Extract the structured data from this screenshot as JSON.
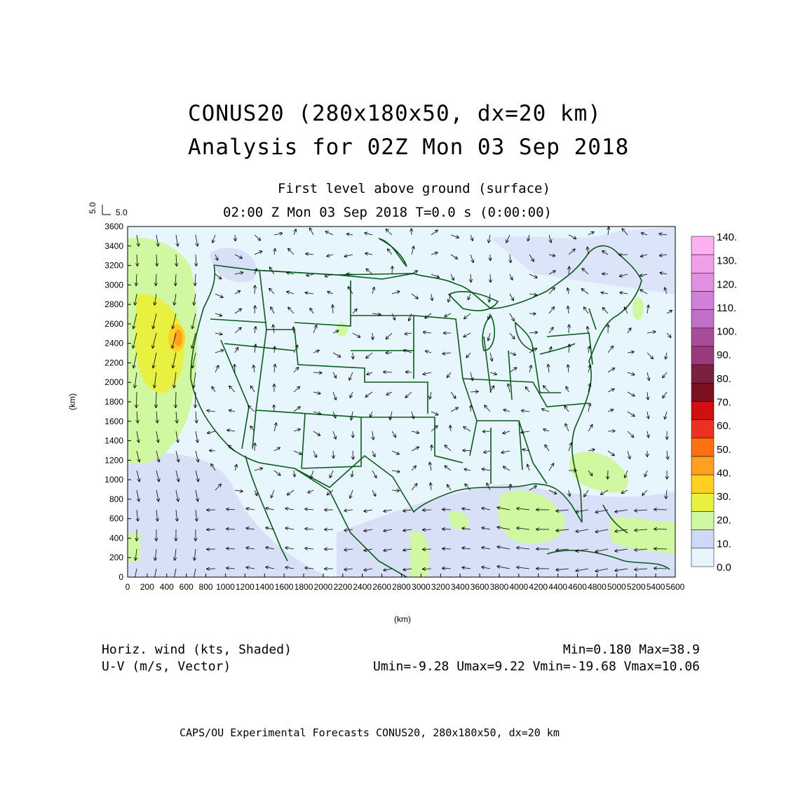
{
  "titles": {
    "line1": "CONUS20 (280x180x50, dx=20 km)",
    "line2": "Analysis for 02Z Mon 03 Sep 2018",
    "level": "First level above ground (surface)",
    "time": "02:00 Z Mon 03 Sep 2018    T=0.0 s (0:00:00)"
  },
  "vector_ref": {
    "y_label": "5.0",
    "x_label": "5.0"
  },
  "axes": {
    "x_unit": "(km)",
    "y_unit": "(km)",
    "x_ticks": [
      "0",
      "200",
      "400",
      "600",
      "800",
      "1000",
      "1200",
      "1400",
      "1600",
      "1800",
      "2000",
      "2200",
      "2400",
      "2600",
      "2800",
      "3000",
      "3200",
      "3400",
      "3600",
      "3800",
      "4000",
      "4200",
      "4400",
      "4600",
      "4800",
      "5000",
      "5200",
      "5400",
      "5600"
    ],
    "y_ticks": [
      "0",
      "200",
      "400",
      "600",
      "800",
      "1000",
      "1200",
      "1400",
      "1600",
      "1800",
      "2000",
      "2200",
      "2400",
      "2600",
      "2800",
      "3000",
      "3200",
      "3400",
      "3600"
    ],
    "x_range": [
      0,
      5600
    ],
    "y_range": [
      0,
      3600
    ]
  },
  "colorbar": {
    "labels": [
      "140.",
      "130.",
      "120.",
      "110.",
      "100.",
      "90.",
      "80.",
      "70.",
      "60.",
      "50.",
      "40.",
      "30.",
      "20.",
      "10.",
      "0.0"
    ],
    "colors": [
      "#ffb0f0",
      "#f0a0e8",
      "#e090e0",
      "#d080d8",
      "#c070c8",
      "#a84c9c",
      "#9a3a7c",
      "#7a2040",
      "#7a1020",
      "#d01010",
      "#ee3020",
      "#ff7010",
      "#ffa020",
      "#ffd020",
      "#e8f040",
      "#d0f8a0",
      "#d0d8f8",
      "#e6f6fc"
    ]
  },
  "legend": {
    "shaded": "Horiz. wind (kts, Shaded)",
    "vector": "U-V (m/s, Vector)",
    "minmax": "Min=0.180 Max=38.9",
    "uv_stats": "Umin=-9.28 Umax=9.22 Vmin=-19.68 Vmax=10.06"
  },
  "footer": "CAPS/OU Experimental Forecasts  CONUS20, 280x180x50, dx=20 km",
  "palette": {
    "ocean_base": "#e6f6fc",
    "calm_blue": "#d8e0f8",
    "light_green": "#d0f8a0",
    "yellow_green": "#e8f040",
    "orange": "#ffa020",
    "map_lines": "#0a5a1a"
  }
}
